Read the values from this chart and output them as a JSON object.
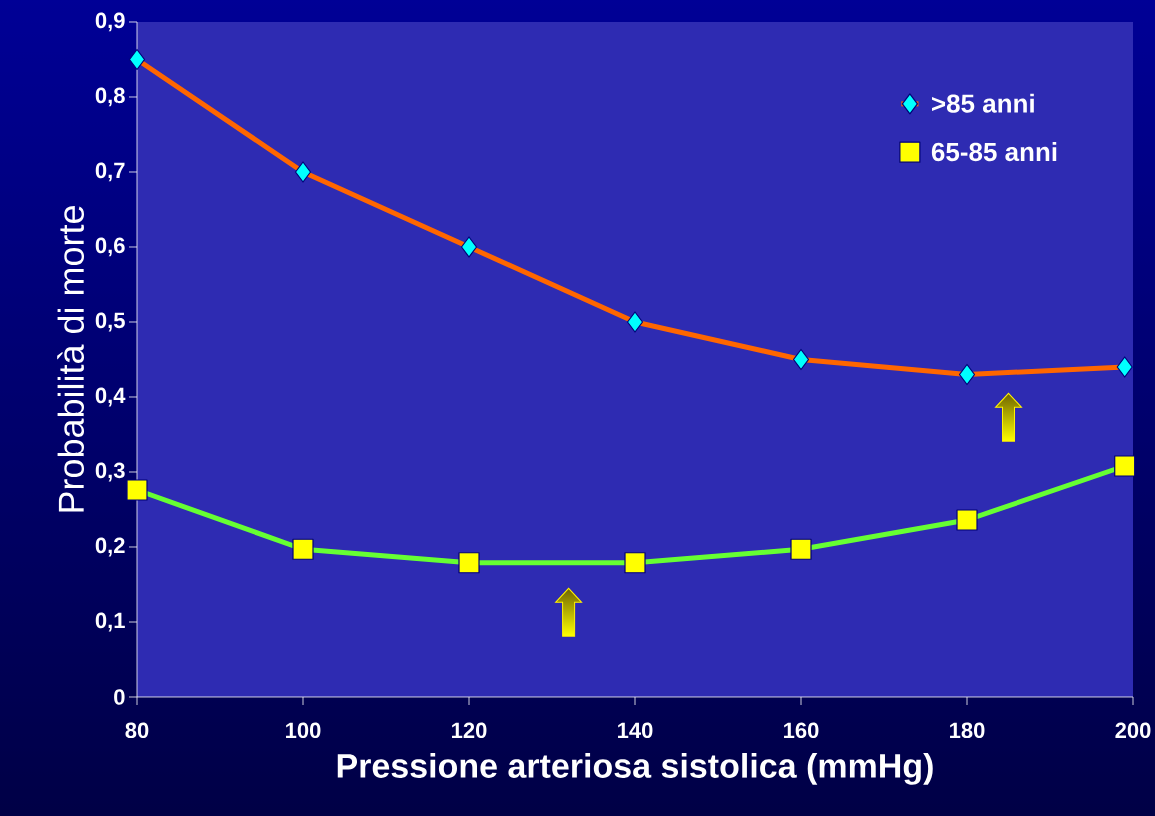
{
  "chart_data": {
    "type": "line",
    "xlabel": "Pressione arteriosa sistolica (mmHg)",
    "ylabel": "Probabilità di morte",
    "x": [
      80,
      100,
      120,
      140,
      160,
      180,
      199
    ],
    "series": [
      {
        "name": ">85 anni",
        "color": "#ff6600",
        "marker": "diamond",
        "values": [
          0.85,
          0.7,
          0.6,
          0.5,
          0.45,
          0.43,
          0.44
        ]
      },
      {
        "name": "65-85 anni",
        "color": "#66ff33",
        "marker": "square",
        "values": [
          0.276,
          0.197,
          0.179,
          0.179,
          0.197,
          0.236,
          0.308
        ]
      }
    ],
    "xlim": [
      80,
      200
    ],
    "xticks": [
      80,
      100,
      120,
      140,
      160,
      180,
      200
    ],
    "ylim": [
      0,
      0.9
    ],
    "yticks": [
      0,
      {
        "value": 0.1,
        "label": "0,1"
      },
      {
        "value": 0.2,
        "label": "0,2"
      },
      {
        "value": 0.3,
        "label": "0,3"
      },
      {
        "value": 0.4,
        "label": "0,4"
      },
      {
        "value": 0.5,
        "label": "0,5"
      },
      {
        "value": 0.6,
        "label": "0,6"
      },
      {
        "value": 0.7,
        "label": "0,7"
      },
      {
        "value": 0.8,
        "label": "0,8"
      },
      {
        "value": 0.9,
        "label": "0,9"
      }
    ],
    "grid": false,
    "legend": "top right",
    "line_style": "solid"
  }
}
